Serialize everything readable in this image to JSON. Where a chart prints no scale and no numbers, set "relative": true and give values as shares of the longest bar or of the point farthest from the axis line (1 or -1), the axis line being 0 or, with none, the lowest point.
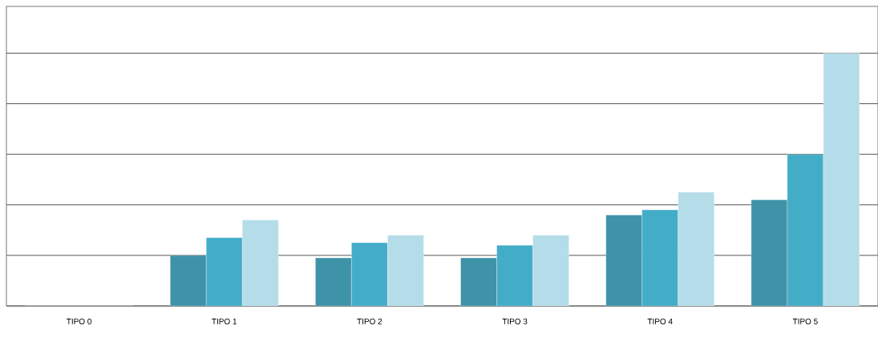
{
  "chart_data": {
    "type": "bar",
    "relative": true,
    "grid": true,
    "categories": [
      "TIPO 0",
      "TIPO 1",
      "TIPO 2",
      "TIPO 3",
      "TIPO 4",
      "TIPO 5"
    ],
    "series": [
      {
        "color": "#3f93a8",
        "values": [
          0,
          0.2,
          0.19,
          0.19,
          0.36,
          0.42
        ]
      },
      {
        "color": "#43adc8",
        "values": [
          0,
          0.27,
          0.25,
          0.24,
          0.38,
          0.6
        ]
      },
      {
        "color": "#b5dde9",
        "values": [
          0,
          0.34,
          0.28,
          0.28,
          0.45,
          1
        ]
      }
    ]
  }
}
